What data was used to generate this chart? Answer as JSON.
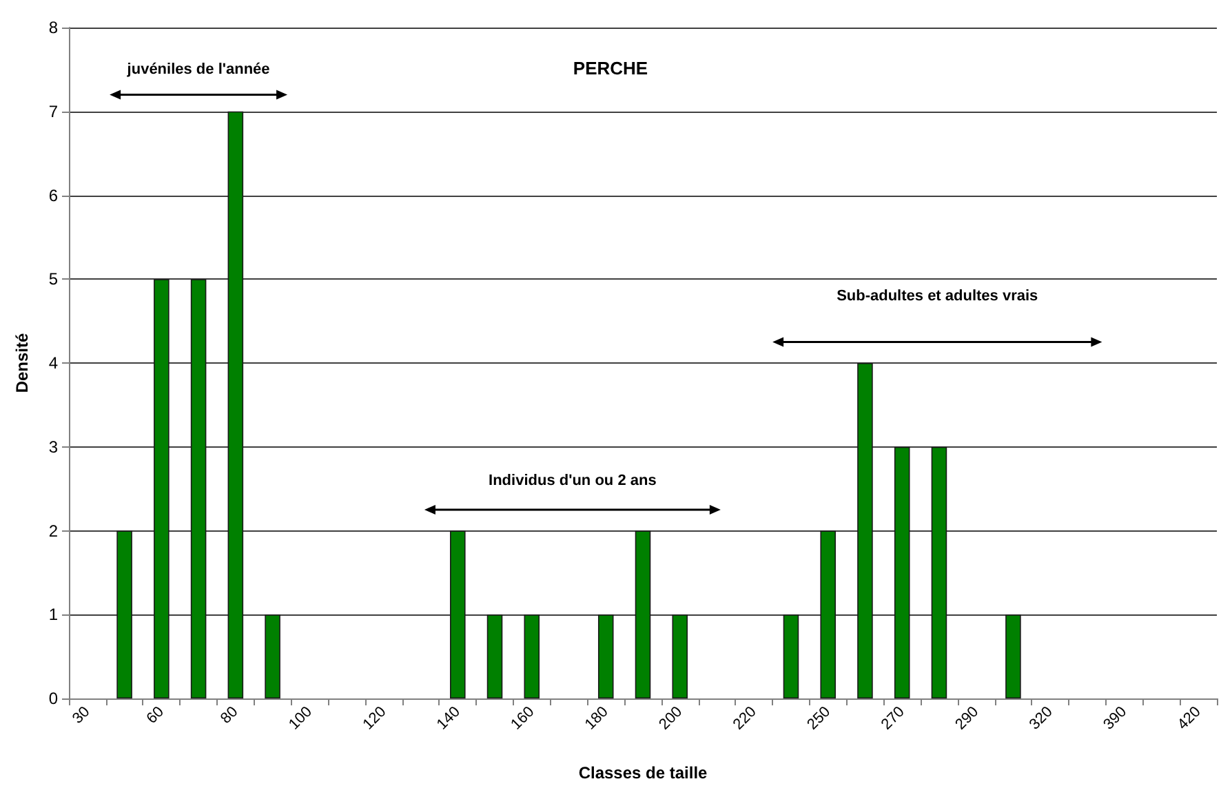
{
  "chart_data": {
    "type": "bar",
    "title": "PERCHE",
    "xlabel": "Classes de taille",
    "ylabel": "Densité",
    "categories": [
      "30",
      null,
      "60",
      null,
      "80",
      null,
      "100",
      null,
      "120",
      null,
      "140",
      null,
      "160",
      null,
      "180",
      null,
      "200",
      null,
      "220",
      null,
      "250",
      null,
      "270",
      null,
      "290",
      null,
      "320",
      null,
      "390",
      null,
      "420"
    ],
    "values": [
      0,
      2,
      5,
      5,
      7,
      1,
      0,
      0,
      0,
      0,
      2,
      1,
      1,
      0,
      1,
      2,
      1,
      0,
      0,
      1,
      2,
      4,
      3,
      3,
      0,
      1,
      0,
      0,
      0,
      0,
      0
    ],
    "color": "#008000",
    "ylim": [
      0,
      8
    ],
    "yticks": [
      0,
      1,
      2,
      3,
      4,
      5,
      6,
      7,
      8
    ],
    "grid": "y",
    "annotations": [
      "juvéniles de l'année",
      "Individus d'un ou 2 ans",
      "Sub-adultes et adultes vrais"
    ]
  }
}
